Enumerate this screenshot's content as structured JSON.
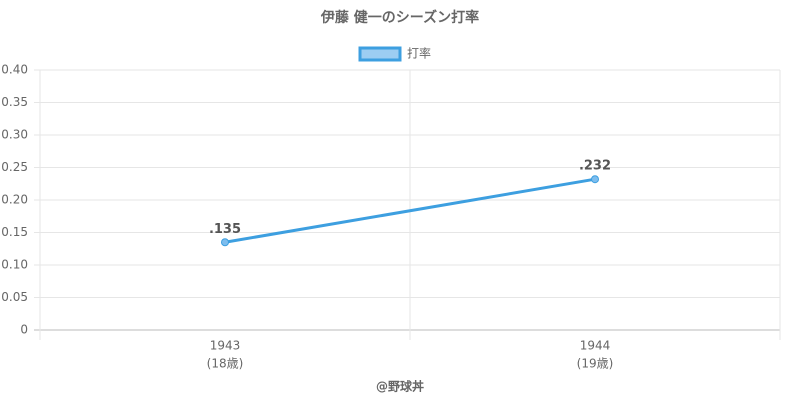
{
  "chart_data": {
    "type": "line",
    "title": "伊藤 健一のシーズン打率",
    "categories": [
      "1943",
      "1944"
    ],
    "category_sublabels": [
      "(18歳)",
      "(19歳)"
    ],
    "series": [
      {
        "name": "打率",
        "color": "#3d9fe0",
        "values": [
          0.135,
          0.232
        ],
        "value_labels": [
          ".135",
          ".232"
        ]
      }
    ],
    "ylim": [
      0,
      0.4
    ],
    "yticks": [
      0,
      0.05,
      {
        "value": 0.1,
        "label": "0.10"
      },
      0.15,
      {
        "value": 0.2,
        "label": "0.20"
      },
      0.25,
      {
        "value": 0.3,
        "label": "0.30"
      },
      0.35,
      {
        "value": 0.4,
        "label": "0.40"
      }
    ],
    "grid": true,
    "legend": "top",
    "credit": "@野球丼"
  }
}
